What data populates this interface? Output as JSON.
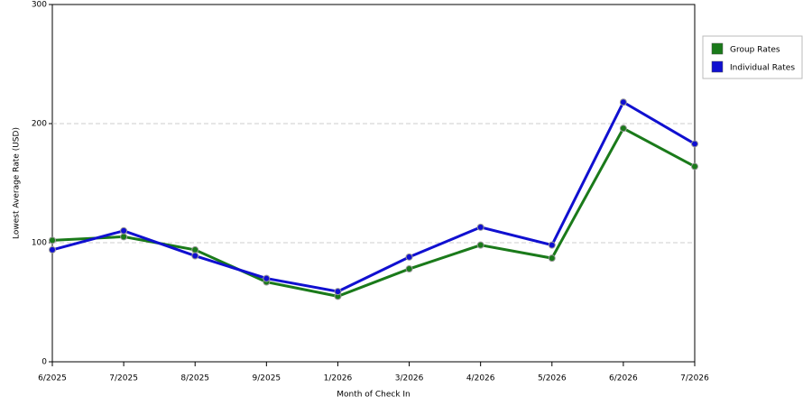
{
  "chart_data": {
    "type": "line",
    "x_label": "Month of Check In",
    "y_label": "Lowest Average Rate (USD)",
    "categories": [
      "6/2025",
      "7/2025",
      "8/2025",
      "9/2025",
      "1/2026",
      "3/2026",
      "4/2026",
      "5/2026",
      "6/2026",
      "7/2026"
    ],
    "series": [
      {
        "name": "Group Rates",
        "color": "#1a7a1a",
        "values": [
          102,
          105,
          94,
          67,
          55,
          78,
          98,
          87,
          196,
          164
        ]
      },
      {
        "name": "Individual Rates",
        "color": "#1010d0",
        "values": [
          94,
          110,
          89,
          70,
          59,
          88,
          113,
          98,
          218,
          183
        ]
      }
    ],
    "ylim": [
      0,
      300
    ],
    "yticks": [
      0,
      100,
      200,
      300
    ],
    "grid": true,
    "legend": "right"
  }
}
